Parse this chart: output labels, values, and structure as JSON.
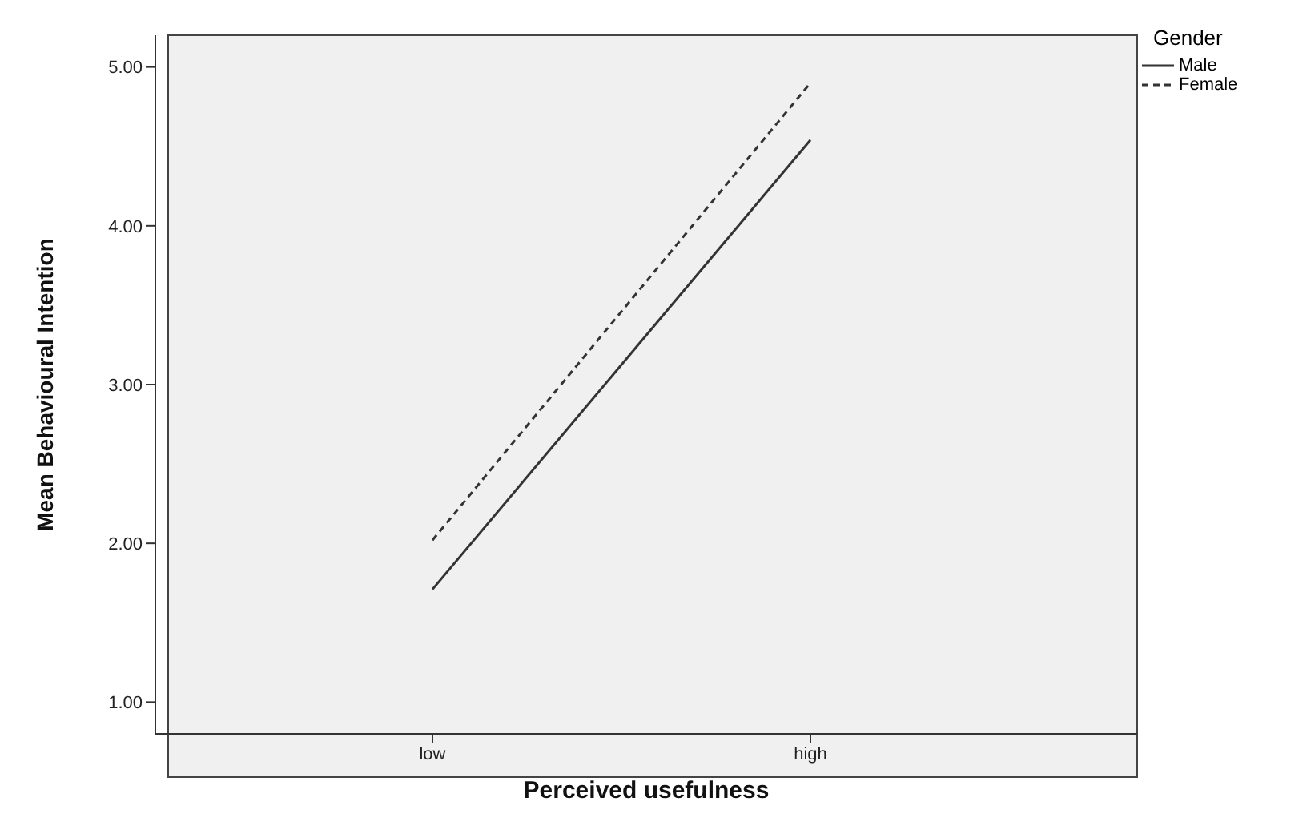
{
  "chart_data": {
    "type": "line",
    "xlabel": "Perceived usefulness",
    "ylabel": "Mean Behavioural Intention",
    "legend_title": "Gender",
    "categories": [
      "low",
      "high"
    ],
    "series": [
      {
        "name": "Male",
        "color": "#333333",
        "values": [
          1.71,
          4.54
        ],
        "line_style": "solid"
      },
      {
        "name": "Female",
        "color": "#333333",
        "values": [
          2.02,
          4.9
        ],
        "line_style": "dashed"
      }
    ],
    "ylim": [
      0.8,
      5.2
    ],
    "yticks": [
      {
        "value": 1,
        "label": "1.00"
      },
      {
        "value": 2,
        "label": "2.00"
      },
      {
        "value": 3,
        "label": "3.00"
      },
      {
        "value": 4,
        "label": "4.00"
      },
      {
        "value": 5,
        "label": "5.00"
      }
    ],
    "grid": false,
    "legend": "top right",
    "marker": "none"
  }
}
